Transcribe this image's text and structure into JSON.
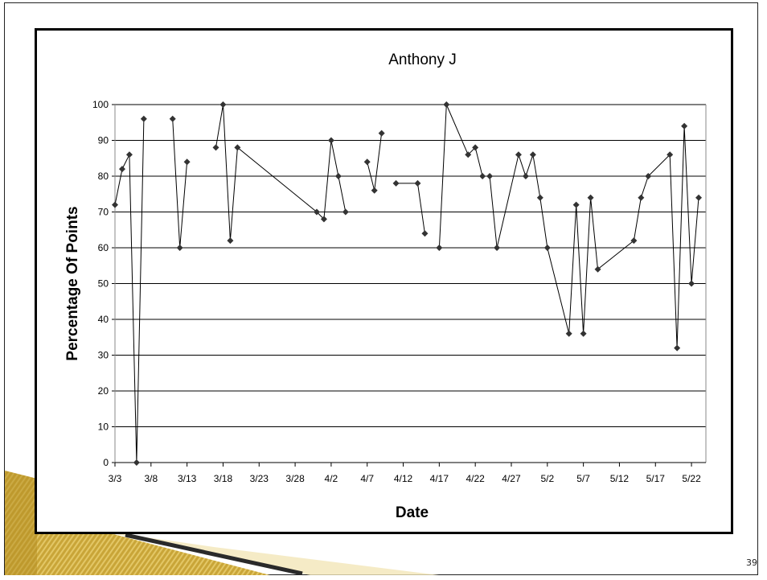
{
  "slide": {
    "page_number": "39"
  },
  "chart_data": {
    "type": "line",
    "title": "Anthony J",
    "xlabel": "Date",
    "ylabel": "Percentage Of Points",
    "ylim": [
      0,
      100
    ],
    "yticks": [
      0,
      10,
      20,
      30,
      40,
      50,
      60,
      70,
      80,
      90,
      100
    ],
    "xlim": [
      "2010-03-03",
      "2010-05-24"
    ],
    "xtick_labels": [
      "3/3",
      "3/8",
      "3/13",
      "3/18",
      "3/23",
      "3/28",
      "4/2",
      "4/7",
      "4/12",
      "4/17",
      "4/22",
      "4/27",
      "5/2",
      "5/7",
      "5/12",
      "5/17",
      "5/22"
    ],
    "grid": "horizontal",
    "colors": {
      "line": "#000000",
      "marker": "#333333",
      "grid": "#000000"
    },
    "series": [
      {
        "name": "",
        "segments": [
          [
            [
              "2010-03-03",
              72
            ],
            [
              "2010-03-04",
              82
            ],
            [
              "2010-03-05",
              86
            ],
            [
              "2010-03-06",
              0
            ],
            [
              "2010-03-07",
              96
            ]
          ],
          [
            [
              "2010-03-11",
              96
            ],
            [
              "2010-03-12",
              60
            ],
            [
              "2010-03-13",
              84
            ]
          ],
          [
            [
              "2010-03-17",
              88
            ],
            [
              "2010-03-18",
              100
            ],
            [
              "2010-03-19",
              62
            ],
            [
              "2010-03-20",
              88
            ],
            [
              "2010-03-31",
              70
            ],
            [
              "2010-04-01",
              68
            ],
            [
              "2010-04-02",
              90
            ],
            [
              "2010-04-03",
              80
            ],
            [
              "2010-04-04",
              70
            ]
          ],
          [
            [
              "2010-04-07",
              84
            ],
            [
              "2010-04-08",
              76
            ],
            [
              "2010-04-09",
              92
            ]
          ],
          [
            [
              "2010-04-11",
              78
            ],
            [
              "2010-04-14",
              78
            ],
            [
              "2010-04-15",
              64
            ]
          ],
          [
            [
              "2010-04-17",
              60
            ],
            [
              "2010-04-18",
              100
            ],
            [
              "2010-04-21",
              86
            ],
            [
              "2010-04-22",
              88
            ],
            [
              "2010-04-23",
              80
            ],
            [
              "2010-04-24",
              80
            ],
            [
              "2010-04-25",
              60
            ],
            [
              "2010-04-28",
              86
            ],
            [
              "2010-04-29",
              80
            ],
            [
              "2010-04-30",
              86
            ],
            [
              "2010-05-01",
              74
            ],
            [
              "2010-05-02",
              60
            ],
            [
              "2010-05-05",
              36
            ],
            [
              "2010-05-06",
              72
            ],
            [
              "2010-05-07",
              36
            ],
            [
              "2010-05-08",
              74
            ],
            [
              "2010-05-09",
              54
            ],
            [
              "2010-05-14",
              62
            ],
            [
              "2010-05-15",
              74
            ],
            [
              "2010-05-16",
              80
            ],
            [
              "2010-05-19",
              86
            ],
            [
              "2010-05-20",
              32
            ],
            [
              "2010-05-21",
              94
            ],
            [
              "2010-05-22",
              50
            ],
            [
              "2010-05-23",
              74
            ]
          ]
        ]
      }
    ]
  }
}
